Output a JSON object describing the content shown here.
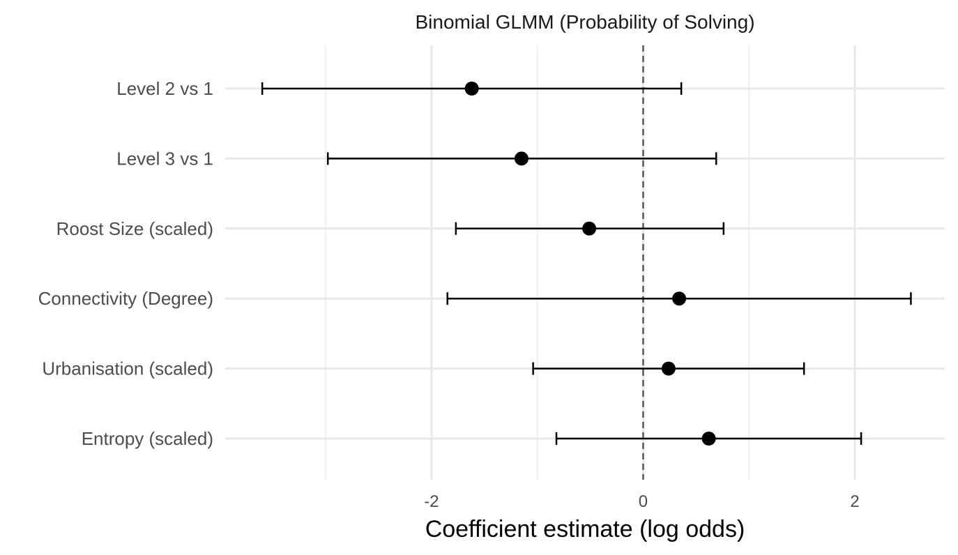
{
  "chart_data": {
    "type": "scatter",
    "subtype": "coefficient-forest-plot",
    "title": "Binomial GLMM (Probability of Solving)",
    "xlabel": "Coefficient estimate (log odds)",
    "ylabel": "",
    "xlim": [
      -3.95,
      2.85
    ],
    "x_ticks": [
      "-2",
      "0",
      "2"
    ],
    "x_tick_values": [
      -2,
      0,
      2
    ],
    "x_minor_gridlines": [
      -3,
      -1,
      1
    ],
    "reference_line": {
      "x": 0,
      "style": "dashed"
    },
    "grid": true,
    "legend": "none",
    "terms": [
      {
        "label": "Level 2 vs 1",
        "estimate": -1.62,
        "lower": -3.6,
        "upper": 0.36
      },
      {
        "label": "Level 3 vs 1",
        "estimate": -1.15,
        "lower": -2.98,
        "upper": 0.69
      },
      {
        "label": "Roost Size (scaled)",
        "estimate": -0.51,
        "lower": -1.77,
        "upper": 0.76
      },
      {
        "label": "Connectivity (Degree)",
        "estimate": 0.34,
        "lower": -1.85,
        "upper": 2.53
      },
      {
        "label": "Urbanisation (scaled)",
        "estimate": 0.24,
        "lower": -1.04,
        "upper": 1.52
      },
      {
        "label": "Entropy (scaled)",
        "estimate": 0.62,
        "lower": -0.82,
        "upper": 2.06
      }
    ],
    "colors": {
      "point": "#000000",
      "error_bar": "#000000",
      "grid": "#ebebeb",
      "reference_line": "#5a5a5a"
    }
  }
}
